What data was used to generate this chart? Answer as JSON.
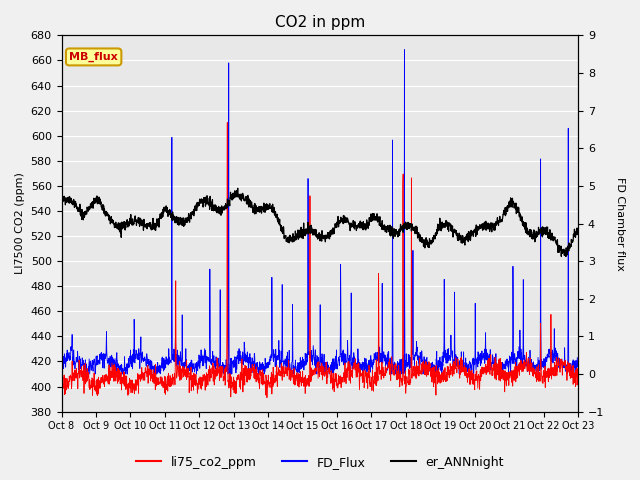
{
  "title": "CO2 in ppm",
  "ylabel_left": "LI7500 CO2 (ppm)",
  "ylabel_right": "FD Chamber flux",
  "ylim_left": [
    380,
    680
  ],
  "ylim_right": [
    -1.0,
    9.0
  ],
  "yticks_left": [
    380,
    400,
    420,
    440,
    460,
    480,
    500,
    520,
    540,
    560,
    580,
    600,
    620,
    640,
    660,
    680
  ],
  "yticks_right": [
    -1.0,
    0.0,
    1.0,
    2.0,
    3.0,
    4.0,
    5.0,
    6.0,
    7.0,
    8.0,
    9.0
  ],
  "x_tick_labels": [
    "Oct 8",
    "Oct 9",
    "Oct 10",
    "Oct 11",
    "Oct 12",
    "Oct 13",
    "Oct 14",
    "Oct 15",
    "Oct 16",
    "Oct 17",
    "Oct 18",
    "Oct 19",
    "Oct 20",
    "Oct 21",
    "Oct 22",
    "Oct 23"
  ],
  "annotation_text": "MB_flux",
  "annotation_color": "#cc0000",
  "annotation_bg": "#ffff99",
  "annotation_border": "#cc9900",
  "line_red": "li75_co2_ppm",
  "line_blue": "FD_Flux",
  "line_black": "er_ANNnight",
  "fig_bg": "#f0f0f0",
  "axes_bg": "#e8e8e8",
  "grid_color": "#ffffff"
}
